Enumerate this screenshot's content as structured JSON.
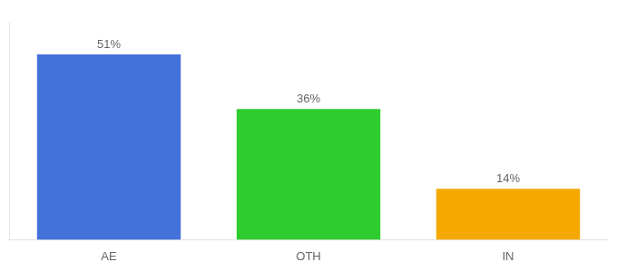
{
  "chart_data": {
    "type": "bar",
    "categories": [
      "AE",
      "OTH",
      "IN"
    ],
    "values": [
      51,
      36,
      14
    ],
    "value_labels": [
      "51%",
      "36%",
      "14%"
    ],
    "colors": [
      "#4472db",
      "#2ecc2e",
      "#f5a800"
    ],
    "ylim": [
      0,
      60
    ],
    "grid": false,
    "data_labels": true,
    "tick_labels": "x"
  }
}
